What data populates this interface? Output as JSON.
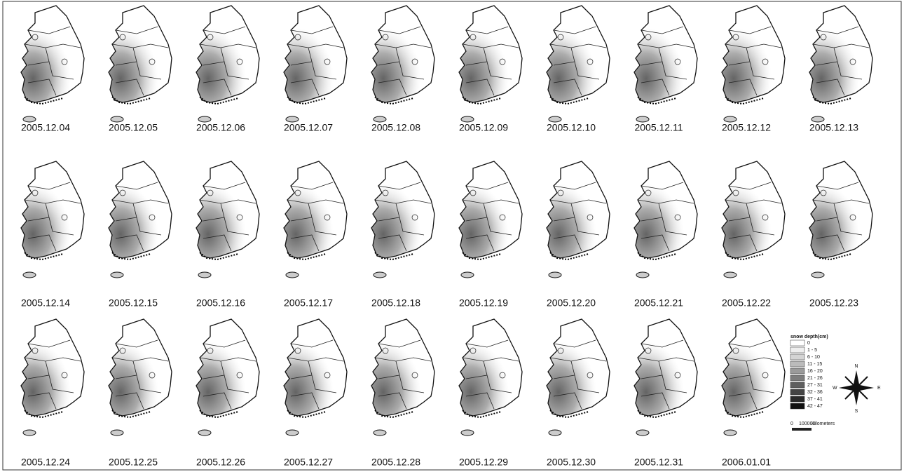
{
  "maps": [
    {
      "date": "2005.12.04"
    },
    {
      "date": "2005.12.05"
    },
    {
      "date": "2005.12.06"
    },
    {
      "date": "2005.12.07"
    },
    {
      "date": "2005.12.08"
    },
    {
      "date": "2005.12.09"
    },
    {
      "date": "2005.12.10"
    },
    {
      "date": "2005.12.11"
    },
    {
      "date": "2005.12.12"
    },
    {
      "date": "2005.12.13"
    },
    {
      "date": "2005.12.14"
    },
    {
      "date": "2005.12.15"
    },
    {
      "date": "2005.12.16"
    },
    {
      "date": "2005.12.17"
    },
    {
      "date": "2005.12.18"
    },
    {
      "date": "2005.12.19"
    },
    {
      "date": "2005.12.20"
    },
    {
      "date": "2005.12.21"
    },
    {
      "date": "2005.12.22"
    },
    {
      "date": "2005.12.23"
    },
    {
      "date": "2005.12.24"
    },
    {
      "date": "2005.12.25"
    },
    {
      "date": "2005.12.26"
    },
    {
      "date": "2005.12.27"
    },
    {
      "date": "2005.12.28"
    },
    {
      "date": "2005.12.29"
    },
    {
      "date": "2005.12.30"
    },
    {
      "date": "2005.12.31"
    },
    {
      "date": "2006.01.01"
    }
  ],
  "legend": {
    "title": "snow depth(cm)",
    "items": [
      "0",
      "1 - 5",
      "6 - 10",
      "11 - 15",
      "16 - 20",
      "21 - 26",
      "27 - 31",
      "32 - 36",
      "37 - 41",
      "42 - 47"
    ]
  },
  "scale": {
    "start": "0",
    "end": "100000",
    "unit": "Kilometers"
  },
  "compass": {
    "n": "N",
    "s": "S",
    "e": "E",
    "w": "W"
  }
}
